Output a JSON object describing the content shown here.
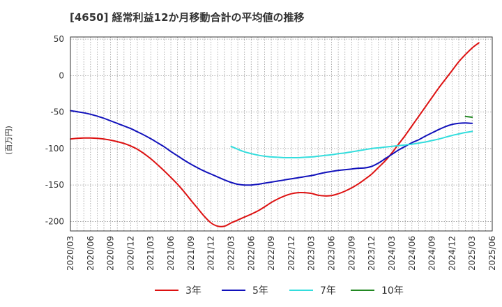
{
  "title": "[4650]  経常利益12か月移動合計の平均値の推移",
  "chart_data": {
    "type": "line",
    "title": "[4650]  経常利益12か月移動合計の平均値の推移",
    "xlabel": "",
    "ylabel": "(百万円)",
    "ylim": [
      -213,
      53
    ],
    "yticks": [
      50,
      0,
      -50,
      -100,
      -150,
      -200
    ],
    "ytick_labels": [
      "50",
      "0",
      "-50",
      "-100",
      "-150",
      "-200"
    ],
    "xtick_labels": [
      "2020/03",
      "2020/06",
      "2020/09",
      "2020/12",
      "2021/03",
      "2021/06",
      "2021/09",
      "2021/12",
      "2022/03",
      "2022/06",
      "2022/09",
      "2022/12",
      "2023/03",
      "2023/06",
      "2023/09",
      "2023/12",
      "2024/03",
      "2024/06",
      "2024/09",
      "2024/12",
      "2025/03",
      "2025/06"
    ],
    "grid": true,
    "legend_position": "bottom",
    "series": [
      {
        "name": "3年",
        "color": "#dd1111",
        "points": [
          [
            "2020/03",
            -87
          ],
          [
            "2020/04",
            -86
          ],
          [
            "2020/05",
            -85.5
          ],
          [
            "2020/06",
            -85.5
          ],
          [
            "2020/07",
            -86
          ],
          [
            "2020/08",
            -87
          ],
          [
            "2020/09",
            -88.5
          ],
          [
            "2020/10",
            -90.5
          ],
          [
            "2020/11",
            -93
          ],
          [
            "2020/12",
            -96.5
          ],
          [
            "2021/01",
            -101
          ],
          [
            "2021/02",
            -107
          ],
          [
            "2021/03",
            -114
          ],
          [
            "2021/04",
            -122
          ],
          [
            "2021/05",
            -130.5
          ],
          [
            "2021/06",
            -139.5
          ],
          [
            "2021/07",
            -149
          ],
          [
            "2021/08",
            -159.5
          ],
          [
            "2021/09",
            -171
          ],
          [
            "2021/10",
            -182
          ],
          [
            "2021/11",
            -193
          ],
          [
            "2021/12",
            -202
          ],
          [
            "2022/01",
            -206.5
          ],
          [
            "2022/02",
            -206.5
          ],
          [
            "2022/03",
            -202
          ],
          [
            "2022/04",
            -198
          ],
          [
            "2022/05",
            -194
          ],
          [
            "2022/06",
            -190
          ],
          [
            "2022/07",
            -185.5
          ],
          [
            "2022/08",
            -180
          ],
          [
            "2022/09",
            -174
          ],
          [
            "2022/10",
            -169
          ],
          [
            "2022/11",
            -165
          ],
          [
            "2022/12",
            -162
          ],
          [
            "2023/01",
            -160.5
          ],
          [
            "2023/02",
            -160.5
          ],
          [
            "2023/03",
            -161.5
          ],
          [
            "2023/04",
            -164
          ],
          [
            "2023/05",
            -165
          ],
          [
            "2023/06",
            -164.5
          ],
          [
            "2023/07",
            -162
          ],
          [
            "2023/08",
            -158.5
          ],
          [
            "2023/09",
            -154
          ],
          [
            "2023/10",
            -148.5
          ],
          [
            "2023/11",
            -142
          ],
          [
            "2023/12",
            -135
          ],
          [
            "2024/01",
            -126
          ],
          [
            "2024/02",
            -117
          ],
          [
            "2024/03",
            -106
          ],
          [
            "2024/04",
            -94
          ],
          [
            "2024/05",
            -82
          ],
          [
            "2024/06",
            -69
          ],
          [
            "2024/07",
            -56
          ],
          [
            "2024/08",
            -43
          ],
          [
            "2024/09",
            -30
          ],
          [
            "2024/10",
            -17
          ],
          [
            "2024/11",
            -5
          ],
          [
            "2024/12",
            7
          ],
          [
            "2025/01",
            19
          ],
          [
            "2025/02",
            29
          ],
          [
            "2025/03",
            38
          ],
          [
            "2025/04",
            45
          ]
        ]
      },
      {
        "name": "5年",
        "color": "#1111bb",
        "points": [
          [
            "2020/03",
            -48
          ],
          [
            "2020/04",
            -49.5
          ],
          [
            "2020/05",
            -51
          ],
          [
            "2020/06",
            -53
          ],
          [
            "2020/07",
            -55.5
          ],
          [
            "2020/08",
            -58.5
          ],
          [
            "2020/09",
            -62
          ],
          [
            "2020/10",
            -65.5
          ],
          [
            "2020/11",
            -69
          ],
          [
            "2020/12",
            -72.5
          ],
          [
            "2021/01",
            -77
          ],
          [
            "2021/02",
            -81.5
          ],
          [
            "2021/03",
            -86.5
          ],
          [
            "2021/04",
            -92
          ],
          [
            "2021/05",
            -97.5
          ],
          [
            "2021/06",
            -104
          ],
          [
            "2021/07",
            -110
          ],
          [
            "2021/08",
            -116
          ],
          [
            "2021/09",
            -121.5
          ],
          [
            "2021/10",
            -126.5
          ],
          [
            "2021/11",
            -131
          ],
          [
            "2021/12",
            -135
          ],
          [
            "2022/01",
            -139
          ],
          [
            "2022/02",
            -143
          ],
          [
            "2022/03",
            -146.5
          ],
          [
            "2022/04",
            -149
          ],
          [
            "2022/05",
            -150
          ],
          [
            "2022/06",
            -150
          ],
          [
            "2022/07",
            -149
          ],
          [
            "2022/08",
            -147.5
          ],
          [
            "2022/09",
            -146
          ],
          [
            "2022/10",
            -144.5
          ],
          [
            "2022/11",
            -143
          ],
          [
            "2022/12",
            -141.5
          ],
          [
            "2023/01",
            -140
          ],
          [
            "2023/02",
            -138.5
          ],
          [
            "2023/03",
            -137
          ],
          [
            "2023/04",
            -135
          ],
          [
            "2023/05",
            -133
          ],
          [
            "2023/06",
            -131.5
          ],
          [
            "2023/07",
            -130
          ],
          [
            "2023/08",
            -129
          ],
          [
            "2023/09",
            -128
          ],
          [
            "2023/10",
            -127
          ],
          [
            "2023/11",
            -126.5
          ],
          [
            "2023/12",
            -124.5
          ],
          [
            "2024/01",
            -120
          ],
          [
            "2024/02",
            -114
          ],
          [
            "2024/03",
            -108
          ],
          [
            "2024/04",
            -102
          ],
          [
            "2024/05",
            -97
          ],
          [
            "2024/06",
            -92
          ],
          [
            "2024/07",
            -88
          ],
          [
            "2024/08",
            -83
          ],
          [
            "2024/09",
            -78.5
          ],
          [
            "2024/10",
            -74
          ],
          [
            "2024/11",
            -70
          ],
          [
            "2024/12",
            -67
          ],
          [
            "2025/01",
            -65.5
          ],
          [
            "2025/02",
            -65
          ],
          [
            "2025/03",
            -65.5
          ]
        ]
      },
      {
        "name": "7年",
        "color": "#33dddd",
        "points": [
          [
            "2022/03",
            -97
          ],
          [
            "2022/04",
            -101
          ],
          [
            "2022/05",
            -104.5
          ],
          [
            "2022/06",
            -107
          ],
          [
            "2022/07",
            -109
          ],
          [
            "2022/08",
            -110.5
          ],
          [
            "2022/09",
            -111.5
          ],
          [
            "2022/10",
            -112
          ],
          [
            "2022/11",
            -112.5
          ],
          [
            "2022/12",
            -112.5
          ],
          [
            "2023/01",
            -112.5
          ],
          [
            "2023/02",
            -112
          ],
          [
            "2023/03",
            -111.5
          ],
          [
            "2023/04",
            -110.5
          ],
          [
            "2023/05",
            -109.5
          ],
          [
            "2023/06",
            -108.5
          ],
          [
            "2023/07",
            -107
          ],
          [
            "2023/08",
            -106
          ],
          [
            "2023/09",
            -104.5
          ],
          [
            "2023/10",
            -103
          ],
          [
            "2023/11",
            -101.5
          ],
          [
            "2023/12",
            -100
          ],
          [
            "2024/01",
            -99
          ],
          [
            "2024/02",
            -98
          ],
          [
            "2024/03",
            -97
          ],
          [
            "2024/04",
            -96
          ],
          [
            "2024/05",
            -95
          ],
          [
            "2024/06",
            -94
          ],
          [
            "2024/07",
            -92.5
          ],
          [
            "2024/08",
            -91
          ],
          [
            "2024/09",
            -89
          ],
          [
            "2024/10",
            -87
          ],
          [
            "2024/11",
            -84.5
          ],
          [
            "2024/12",
            -82
          ],
          [
            "2025/01",
            -80
          ],
          [
            "2025/02",
            -78
          ],
          [
            "2025/03",
            -76.5
          ]
        ]
      },
      {
        "name": "10年",
        "color": "#228822",
        "points": [
          [
            "2025/02",
            -56
          ],
          [
            "2025/03",
            -57
          ]
        ]
      }
    ]
  }
}
